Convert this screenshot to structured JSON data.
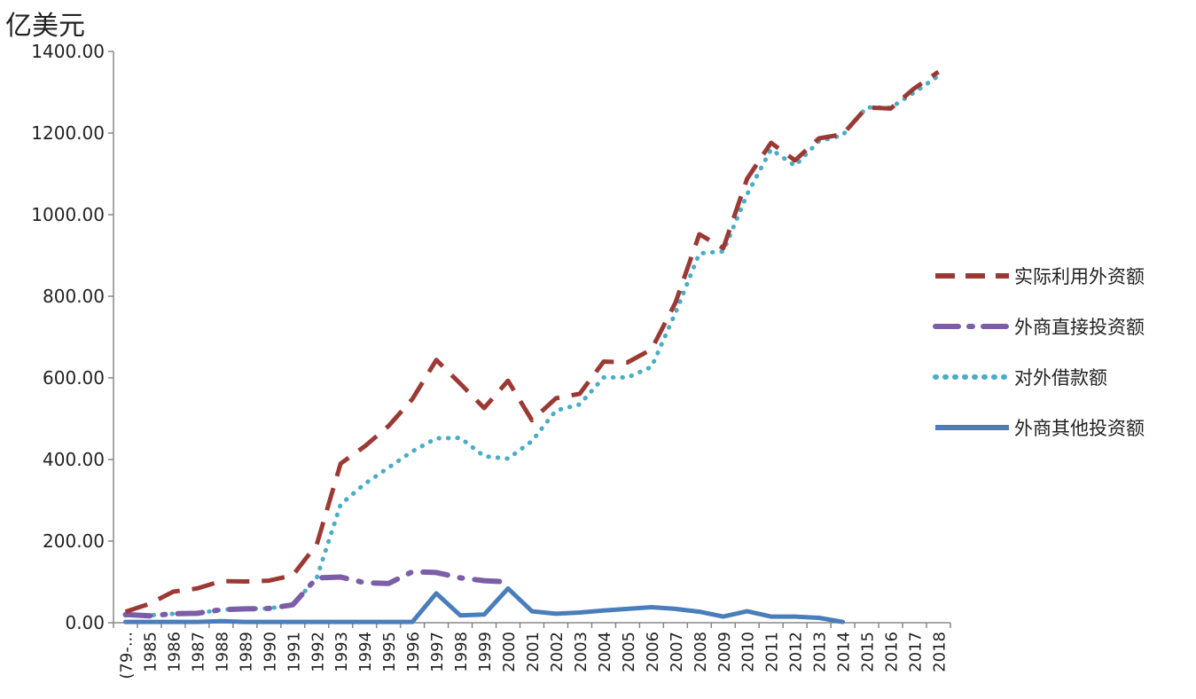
{
  "chart_data": {
    "type": "line",
    "ylabel": "亿美元",
    "ylim": [
      0,
      1400
    ],
    "yticks": [
      "0.00",
      "200.00",
      "400.00",
      "600.00",
      "800.00",
      "1000.00",
      "1200.00",
      "1400.00"
    ],
    "categories": [
      "(79-...",
      "1985",
      "1986",
      "1987",
      "1988",
      "1989",
      "1990",
      "1991",
      "1992",
      "1993",
      "1994",
      "1995",
      "1996",
      "1997",
      "1998",
      "1999",
      "2000",
      "2001",
      "2002",
      "2003",
      "2004",
      "2005",
      "2006",
      "2007",
      "2008",
      "2009",
      "2010",
      "2011",
      "2012",
      "2013",
      "2014",
      "2015",
      "2016",
      "2017",
      "2018"
    ],
    "legend_position": "right",
    "grid": false,
    "series": [
      {
        "name": "实际利用外资额",
        "color": "#9b3a35",
        "style": "dashed",
        "values": [
          27,
          46,
          76,
          84,
          102,
          101,
          103,
          116,
          192,
          390,
          432,
          482,
          548,
          644,
          586,
          526,
          593,
          496,
          550,
          561,
          640,
          638,
          670,
          784,
          952,
          918,
          1088,
          1176,
          1133,
          1187,
          1197,
          1263,
          1260,
          1310,
          1350
        ]
      },
      {
        "name": "外商直接投资额",
        "color": "#7b5ea7",
        "style": "dash-dot",
        "values": [
          20,
          17,
          22,
          23,
          32,
          34,
          35,
          44,
          110,
          112,
          98,
          96,
          125,
          123,
          110,
          103,
          100,
          null,
          null,
          null,
          null,
          null,
          null,
          null,
          null,
          null,
          null,
          null,
          null,
          null,
          null,
          null,
          null,
          null,
          null
        ]
      },
      {
        "name": "对外借款额",
        "color": "#4bacc6",
        "style": "dotted",
        "values": [
          18,
          18,
          22,
          23,
          32,
          34,
          35,
          44,
          110,
          290,
          340,
          380,
          420,
          452,
          453,
          408,
          402,
          445,
          520,
          535,
          601,
          601,
          627,
          759,
          905,
          910,
          1050,
          1160,
          1120,
          1180,
          1195,
          1263,
          1262,
          1300,
          1340
        ]
      },
      {
        "name": "外商其他投资额",
        "color": "#4a7ebb",
        "style": "solid",
        "values": [
          2,
          2,
          2,
          2,
          4,
          2,
          2,
          2,
          2,
          2,
          2,
          2,
          2,
          72,
          18,
          20,
          84,
          28,
          22,
          25,
          30,
          34,
          38,
          34,
          27,
          15,
          28,
          15,
          15,
          12,
          2,
          null,
          null,
          null,
          null
        ]
      }
    ]
  }
}
